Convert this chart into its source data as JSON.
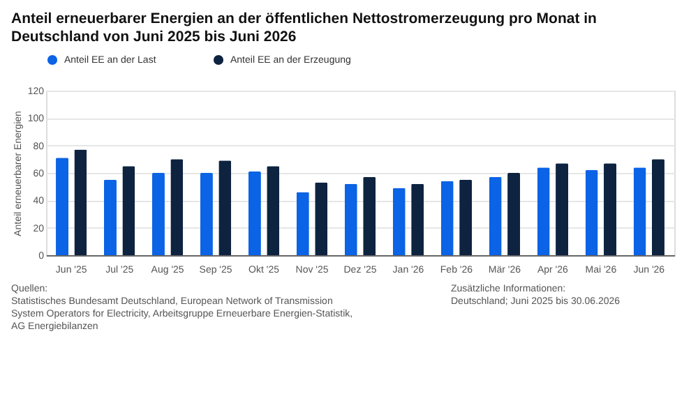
{
  "chart_data": {
    "type": "bar",
    "title": "Anteil erneuerbarer Energien an der öffentlichen Nettostromerzeugung pro Monat in Deutschland von Juni 2025 bis Juni 2026",
    "ylabel": "Anteil erneuerbarer Energien",
    "categories": [
      "Jun '25",
      "Jul '25",
      "Aug '25",
      "Sep '25",
      "Okt '25",
      "Nov '25",
      "Dez '25",
      "Jan '26",
      "Feb '26",
      "Mär '26",
      "Apr '26",
      "Mai '26",
      "Jun '26"
    ],
    "series": [
      {
        "name": "Anteil EE an der Last",
        "color": "#0b63e5",
        "values": [
          71,
          55,
          60,
          60,
          61,
          46,
          52,
          49,
          54,
          57,
          64,
          62,
          64
        ]
      },
      {
        "name": "Anteil EE an der Erzeugung",
        "color": "#0d2340",
        "values": [
          77,
          65,
          70,
          69,
          65,
          53,
          57,
          52,
          55,
          60,
          67,
          67,
          70
        ]
      }
    ],
    "ylim": [
      0,
      120
    ],
    "yticks": [
      0,
      20,
      40,
      60,
      80,
      100,
      120
    ],
    "grid": "y",
    "legend": "top",
    "annotations": [
      "Quellen:\nStatistisches Bundesamt Deutschland, European Network of Transmission\nSystem Operators for Electricity, Arbeitsgruppe Erneuerbare Energien-Statistik,\nAG Energiebilanzen",
      "Zusätzliche Informationen:\nDeutschland; Juni 2025 bis 30.06.2026"
    ]
  }
}
